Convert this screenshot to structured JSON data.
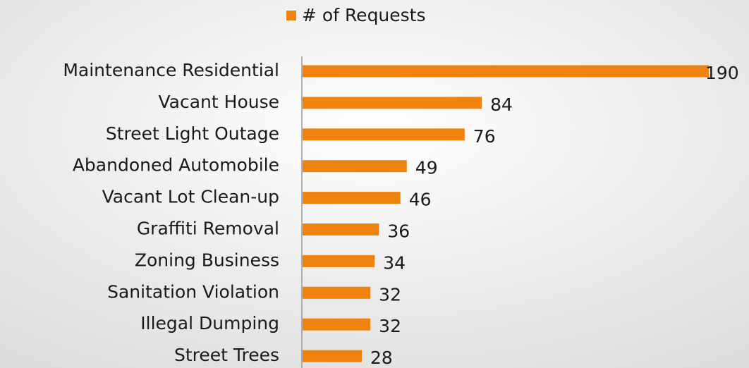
{
  "chart_data": {
    "type": "bar",
    "orientation": "horizontal",
    "categories": [
      "Maintenance Residential",
      "Vacant House",
      "Street Light Outage",
      "Abandoned Automobile",
      "Vacant Lot Clean-up",
      "Graffiti Removal",
      "Zoning Business",
      "Sanitation Violation",
      "Illegal Dumping",
      "Street Trees"
    ],
    "series": [
      {
        "name": "# of Requests",
        "color": "#f0820f",
        "values": [
          190,
          84,
          76,
          49,
          46,
          36,
          34,
          32,
          32,
          28
        ]
      }
    ],
    "legend": "top"
  }
}
